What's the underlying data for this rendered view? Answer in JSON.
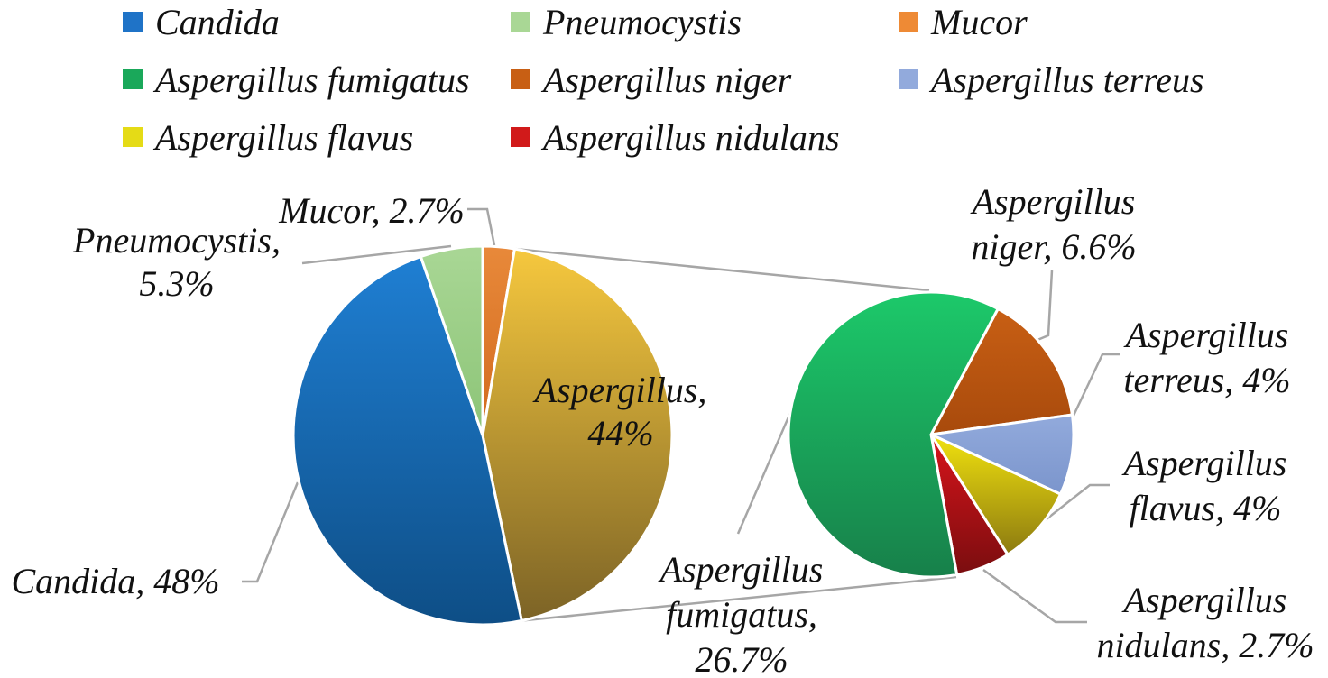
{
  "chart_data": [
    {
      "type": "pie",
      "legend_position": "top",
      "slices": [
        {
          "key": "mucor",
          "label": "Mucor",
          "value": 2.7,
          "value_label": "2.7%",
          "color": "#E8893A",
          "color_dark": "#D26A1E"
        },
        {
          "key": "aspergillus",
          "label": "Aspergillus",
          "value": 44,
          "value_label": "44%",
          "color": "#F6C83E",
          "color_dark": "#7C6326"
        },
        {
          "key": "candida",
          "label": "Candida",
          "value": 48,
          "value_label": "48%",
          "color": "#1F7FD3",
          "color_dark": "#0E4E86"
        },
        {
          "key": "pneumocystis",
          "label": "Pneumocystis",
          "value": 5.3,
          "value_label": "5.3%",
          "color": "#A9D795",
          "color_dark": "#8CC477"
        }
      ]
    },
    {
      "type": "pie",
      "breakdown_of": "Aspergillus",
      "slices": [
        {
          "key": "a-niger",
          "label": "Aspergillus niger",
          "value": 6.6,
          "value_label": "6.6%",
          "color": "#C85F14",
          "color_dark": "#A84A0C"
        },
        {
          "key": "a-terreus",
          "label": "Aspergillus terreus",
          "value": 4,
          "value_label": "4%",
          "color": "#92AADC",
          "color_dark": "#7B95CC"
        },
        {
          "key": "a-flavus",
          "label": "Aspergillus flavus",
          "value": 4,
          "value_label": "4%",
          "color": "#F1E20E",
          "color_dark": "#8C7A10"
        },
        {
          "key": "a-nidulans",
          "label": "Aspergillus nidulans",
          "value": 2.7,
          "value_label": "2.7%",
          "color": "#D9141B",
          "color_dark": "#7A0D0F"
        },
        {
          "key": "a-fumigatus",
          "label": "Aspergillus fumigatus",
          "value": 26.7,
          "value_label": "26.7%",
          "color": "#1CC96A",
          "color_dark": "#17804A"
        }
      ]
    }
  ],
  "legend": [
    {
      "label": "Candida",
      "color": "#1F73C7"
    },
    {
      "label": "Pneumocystis",
      "color": "#A9D795"
    },
    {
      "label": "Mucor",
      "color": "#EE8A35"
    },
    {
      "label": "Aspergillus fumigatus",
      "color": "#1AA85A"
    },
    {
      "label": "Aspergillus niger",
      "color": "#C85F14"
    },
    {
      "label": "Aspergillus terreus",
      "color": "#92AADC"
    },
    {
      "label": "Aspergillus flavus",
      "color": "#E5DB16"
    },
    {
      "label": "Aspergillus nidulans",
      "color": "#D11A1A"
    }
  ],
  "data_labels": {
    "mucor": [
      "Mucor, 2.7%"
    ],
    "pneumocystis": [
      "Pneumocystis,",
      "5.3%"
    ],
    "aspergillus": [
      "Aspergillus,",
      "44%"
    ],
    "candida": [
      "Candida, 48%"
    ],
    "a-niger": [
      "Aspergillus",
      "niger, 6.6%"
    ],
    "a-terreus": [
      "Aspergillus",
      "terreus, 4%"
    ],
    "a-flavus": [
      "Aspergillus",
      "flavus, 4%"
    ],
    "a-nidulans": [
      "Aspergillus",
      "nidulans, 2.7%"
    ],
    "a-fumigatus": [
      "Aspergillus",
      "fumigatus,",
      "26.7%"
    ]
  }
}
